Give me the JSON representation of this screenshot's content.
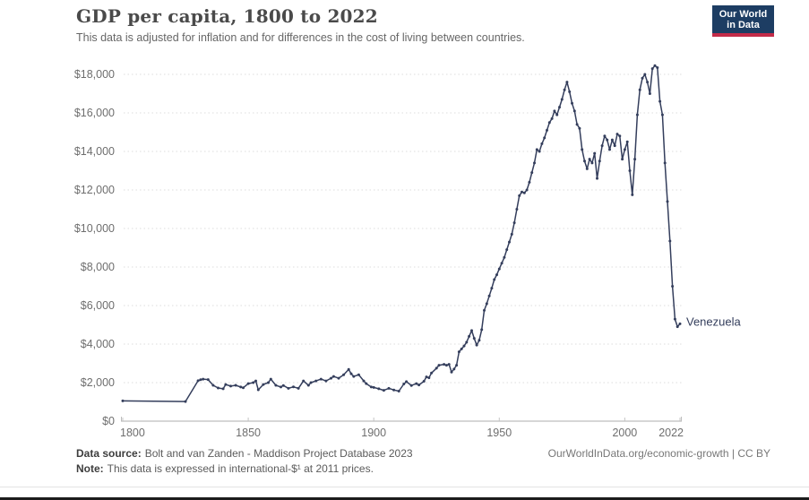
{
  "header": {
    "title": "GDP per capita, 1800 to 2022",
    "subtitle": "This data is adjusted for inflation and for differences in the cost of living between countries."
  },
  "logo": {
    "line1": "Our World",
    "line2": "in Data",
    "bg_color": "#1d3d63",
    "accent_color": "#c32b49"
  },
  "chart_data": {
    "type": "line",
    "title": "GDP per capita, 1800 to 2022",
    "xlabel": "",
    "ylabel": "",
    "grid": true,
    "legend_position": "end-of-line",
    "line_color": "#343e5c",
    "axis_text_color": "#6e6e6e",
    "x": {
      "min": 1800,
      "max": 2022,
      "tick_values": [
        1800,
        1850,
        1900,
        1950,
        2000,
        2022
      ],
      "tick_labels": [
        "1800",
        "1850",
        "1900",
        "1950",
        "2000",
        "2022"
      ]
    },
    "y": {
      "min": 0,
      "max": 18000,
      "tick_values": [
        0,
        2000,
        4000,
        6000,
        8000,
        10000,
        12000,
        14000,
        16000,
        18000
      ],
      "tick_labels": [
        "$0",
        "$2,000",
        "$4,000",
        "$6,000",
        "$8,000",
        "$10,000",
        "$12,000",
        "$14,000",
        "$16,000",
        "$18,000"
      ]
    },
    "series": [
      {
        "name": "Venezuela",
        "points": [
          [
            1800,
            1050
          ],
          [
            1825,
            1020
          ],
          [
            1830,
            2100
          ],
          [
            1831,
            2150
          ],
          [
            1832,
            2180
          ],
          [
            1834,
            2160
          ],
          [
            1836,
            1860
          ],
          [
            1838,
            1720
          ],
          [
            1840,
            1680
          ],
          [
            1841,
            1900
          ],
          [
            1843,
            1820
          ],
          [
            1845,
            1860
          ],
          [
            1847,
            1770
          ],
          [
            1848,
            1730
          ],
          [
            1850,
            1950
          ],
          [
            1852,
            2000
          ],
          [
            1853,
            2090
          ],
          [
            1854,
            1630
          ],
          [
            1856,
            1900
          ],
          [
            1858,
            2000
          ],
          [
            1859,
            2180
          ],
          [
            1861,
            1860
          ],
          [
            1863,
            1770
          ],
          [
            1864,
            1850
          ],
          [
            1866,
            1700
          ],
          [
            1868,
            1780
          ],
          [
            1870,
            1700
          ],
          [
            1872,
            2090
          ],
          [
            1874,
            1860
          ],
          [
            1875,
            2000
          ],
          [
            1877,
            2090
          ],
          [
            1879,
            2180
          ],
          [
            1881,
            2090
          ],
          [
            1883,
            2230
          ],
          [
            1884,
            2320
          ],
          [
            1886,
            2230
          ],
          [
            1888,
            2410
          ],
          [
            1890,
            2690
          ],
          [
            1891,
            2460
          ],
          [
            1892,
            2320
          ],
          [
            1894,
            2410
          ],
          [
            1896,
            2090
          ],
          [
            1897,
            1950
          ],
          [
            1899,
            1770
          ],
          [
            1900,
            1750
          ],
          [
            1902,
            1680
          ],
          [
            1904,
            1600
          ],
          [
            1906,
            1700
          ],
          [
            1908,
            1620
          ],
          [
            1910,
            1560
          ],
          [
            1912,
            1930
          ],
          [
            1913,
            2050
          ],
          [
            1915,
            1850
          ],
          [
            1917,
            1950
          ],
          [
            1918,
            1880
          ],
          [
            1920,
            2070
          ],
          [
            1921,
            2300
          ],
          [
            1922,
            2250
          ],
          [
            1923,
            2500
          ],
          [
            1925,
            2750
          ],
          [
            1926,
            2900
          ],
          [
            1928,
            2950
          ],
          [
            1929,
            2900
          ],
          [
            1930,
            2950
          ],
          [
            1931,
            2550
          ],
          [
            1932,
            2700
          ],
          [
            1933,
            2900
          ],
          [
            1934,
            3600
          ],
          [
            1935,
            3750
          ],
          [
            1936,
            3900
          ],
          [
            1937,
            4100
          ],
          [
            1938,
            4400
          ],
          [
            1939,
            4700
          ],
          [
            1940,
            4300
          ],
          [
            1941,
            3950
          ],
          [
            1942,
            4200
          ],
          [
            1943,
            4750
          ],
          [
            1944,
            5750
          ],
          [
            1945,
            6100
          ],
          [
            1946,
            6500
          ],
          [
            1947,
            6900
          ],
          [
            1948,
            7350
          ],
          [
            1949,
            7600
          ],
          [
            1950,
            7900
          ],
          [
            1951,
            8200
          ],
          [
            1952,
            8500
          ],
          [
            1953,
            8900
          ],
          [
            1954,
            9300
          ],
          [
            1955,
            9700
          ],
          [
            1956,
            10300
          ],
          [
            1957,
            11000
          ],
          [
            1958,
            11700
          ],
          [
            1959,
            11900
          ],
          [
            1960,
            11850
          ],
          [
            1961,
            12000
          ],
          [
            1962,
            12400
          ],
          [
            1963,
            12900
          ],
          [
            1964,
            13400
          ],
          [
            1965,
            14100
          ],
          [
            1966,
            14000
          ],
          [
            1967,
            14400
          ],
          [
            1968,
            14700
          ],
          [
            1969,
            15100
          ],
          [
            1970,
            15500
          ],
          [
            1971,
            15700
          ],
          [
            1972,
            16100
          ],
          [
            1973,
            15900
          ],
          [
            1974,
            16300
          ],
          [
            1975,
            16700
          ],
          [
            1976,
            17200
          ],
          [
            1977,
            17600
          ],
          [
            1978,
            17100
          ],
          [
            1979,
            16500
          ],
          [
            1980,
            16100
          ],
          [
            1981,
            15400
          ],
          [
            1982,
            15200
          ],
          [
            1983,
            14100
          ],
          [
            1984,
            13500
          ],
          [
            1985,
            13100
          ],
          [
            1986,
            13600
          ],
          [
            1987,
            13400
          ],
          [
            1988,
            13900
          ],
          [
            1989,
            12600
          ],
          [
            1990,
            13500
          ],
          [
            1991,
            14300
          ],
          [
            1992,
            14800
          ],
          [
            1993,
            14600
          ],
          [
            1994,
            14100
          ],
          [
            1995,
            14600
          ],
          [
            1996,
            14300
          ],
          [
            1997,
            14900
          ],
          [
            1998,
            14800
          ],
          [
            1999,
            13600
          ],
          [
            2000,
            14100
          ],
          [
            2001,
            14500
          ],
          [
            2002,
            13000
          ],
          [
            2003,
            11750
          ],
          [
            2004,
            13600
          ],
          [
            2005,
            15900
          ],
          [
            2006,
            17200
          ],
          [
            2007,
            17800
          ],
          [
            2008,
            18000
          ],
          [
            2009,
            17600
          ],
          [
            2010,
            17000
          ],
          [
            2011,
            18300
          ],
          [
            2012,
            18450
          ],
          [
            2013,
            18350
          ],
          [
            2014,
            16600
          ],
          [
            2015,
            15900
          ],
          [
            2016,
            13400
          ],
          [
            2017,
            11400
          ],
          [
            2018,
            9350
          ],
          [
            2019,
            7000
          ],
          [
            2020,
            5300
          ],
          [
            2021,
            4900
          ],
          [
            2022,
            5050
          ]
        ]
      }
    ]
  },
  "footer": {
    "source_label": "Data source:",
    "source_text": "Bolt and van Zanden - Maddison Project Database 2023",
    "note_label": "Note:",
    "note_text": "This data is expressed in international-$¹ at 2011 prices.",
    "link_text": "OurWorldInData.org/economic-growth | CC BY"
  }
}
